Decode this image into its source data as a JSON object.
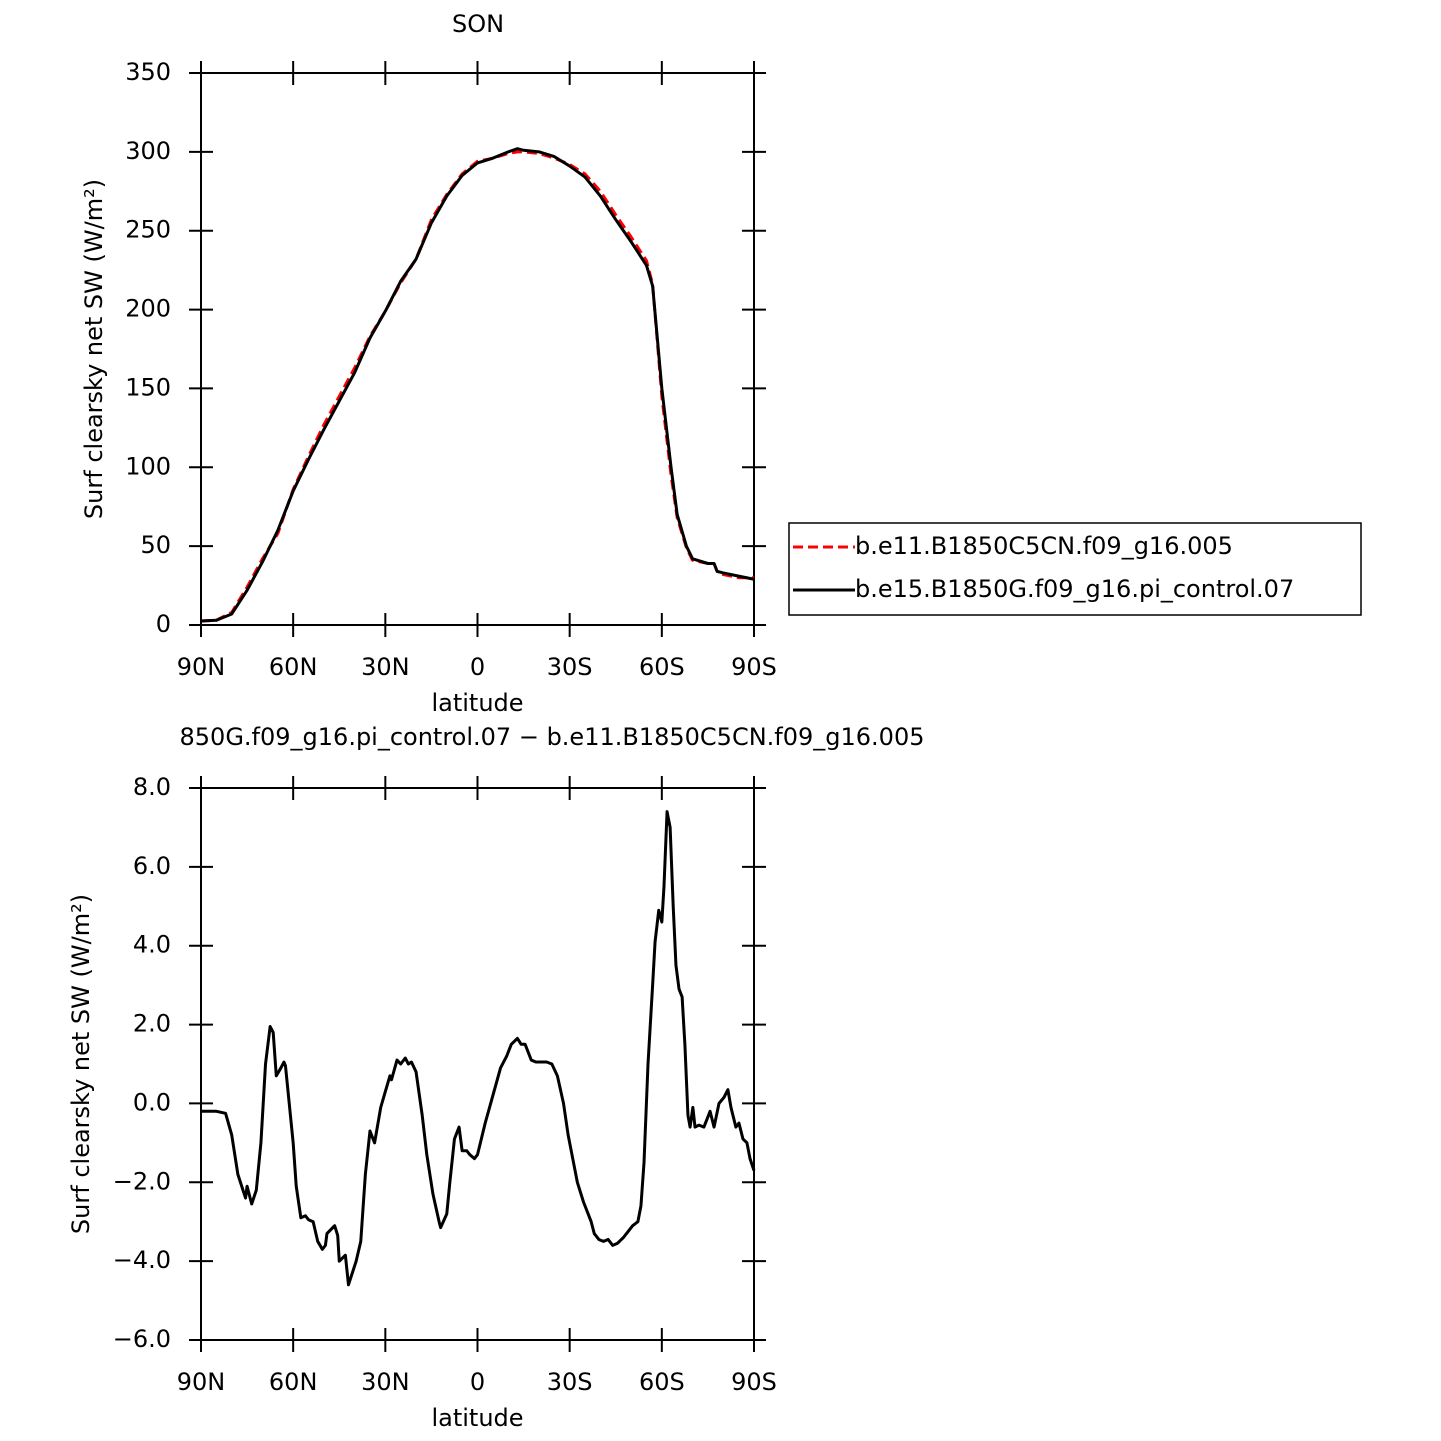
{
  "chart_data": [
    {
      "type": "line",
      "title": "SON",
      "xlabel": "latitude",
      "ylabel": "Surf clearsky net SW (W/m²)",
      "x": [
        90,
        85,
        80,
        75,
        70,
        65,
        60,
        55,
        50,
        45,
        40,
        35,
        30,
        25,
        20,
        15,
        10,
        5,
        0,
        -5,
        -10,
        -13,
        -15,
        -20,
        -25,
        -30,
        -35,
        -40,
        -45,
        -50,
        -55,
        -57,
        -60,
        -63,
        -65,
        -68,
        -70,
        -75,
        -77,
        -78,
        -80,
        -85,
        -90
      ],
      "series": [
        {
          "name": "b.e11.B1850C5CN.f09_g16.005",
          "color": "#ff0000",
          "linestyle": "dashed",
          "values": [
            2.5,
            3,
            8,
            24,
            42,
            58,
            86,
            107,
            127,
            145,
            163,
            183,
            199,
            217,
            232,
            257,
            273,
            286,
            294,
            296,
            299,
            300,
            300,
            299,
            296,
            292,
            286,
            275,
            260,
            246,
            231,
            216,
            145,
            95,
            68,
            49,
            41,
            39,
            39,
            34,
            32,
            30,
            30
          ]
        },
        {
          "name": "b.e15.B1850G.f09_g16.pi_control.07",
          "color": "#000000",
          "linestyle": "solid",
          "values": [
            2.5,
            3,
            7,
            22,
            40,
            60,
            85,
            105,
            124,
            142,
            160,
            182,
            199,
            218,
            232,
            255,
            272,
            285,
            293,
            296,
            300,
            302,
            301,
            300,
            297,
            291,
            284,
            272,
            257,
            243,
            228,
            215,
            150,
            100,
            70,
            50,
            42,
            39,
            39,
            34,
            33,
            31,
            29
          ]
        }
      ],
      "xlim": [
        90,
        -90
      ],
      "xticks": [
        {
          "value": 90,
          "label": "90N"
        },
        {
          "value": 60,
          "label": "60N"
        },
        {
          "value": 30,
          "label": "30N"
        },
        0,
        {
          "value": -30,
          "label": "30S"
        },
        {
          "value": -60,
          "label": "60S"
        },
        {
          "value": -90,
          "label": "90S"
        }
      ],
      "ylim": [
        0,
        350
      ],
      "yticks": [
        0,
        50,
        100,
        150,
        200,
        250,
        300,
        350
      ],
      "legend": "right",
      "grid": false
    },
    {
      "type": "line",
      "title": "850G.f09_g16.pi_control.07 − b.e11.B1850C5CN.f09_g16.005",
      "xlabel": "latitude",
      "ylabel": "Surf clearsky net SW (W/m²)",
      "x": [
        90,
        85,
        82,
        80,
        78,
        75.5,
        75,
        73.5,
        72,
        70.5,
        69,
        67.5,
        66.5,
        65.5,
        64,
        63,
        62.5,
        60,
        59,
        57.5,
        56,
        55,
        53.5,
        52,
        50.5,
        49.5,
        49,
        46.5,
        45.5,
        45,
        43,
        42,
        39.5,
        38,
        36.5,
        35,
        33.5,
        31.5,
        30,
        28.5,
        28,
        26.2,
        25,
        23.5,
        22.5,
        21.5,
        20,
        18,
        16.5,
        14.5,
        12.5,
        12,
        10,
        9,
        7.5,
        6,
        5,
        3.5,
        2.5,
        1,
        0,
        -2.5,
        -5,
        -7.5,
        -9.5,
        -11,
        -13,
        -14.2,
        -15.5,
        -17.5,
        -19,
        -20.5,
        -22.5,
        -24.2,
        -26,
        -28,
        -29.5,
        -31,
        -32.5,
        -34.5,
        -36,
        -37,
        -38,
        -39.5,
        -41,
        -42.5,
        -44,
        -45.5,
        -47.5,
        -48.5,
        -50.5,
        -52.2,
        -53.2,
        -54.2,
        -55.5,
        -57,
        -57.8,
        -59,
        -60,
        -60.7,
        -61.7,
        -62.7,
        -63.7,
        -64.6,
        -65.6,
        -66.6,
        -67.5,
        -68.5,
        -69.2,
        -70.1,
        -70.8,
        -72.1,
        -73.7,
        -75.7,
        -77,
        -78.6,
        -80.2,
        -81.5,
        -82.5,
        -84.1,
        -85.1,
        -86.4,
        -87.7,
        -88.7,
        -90
      ],
      "series": [
        {
          "color": "#000000",
          "linestyle": "solid",
          "values": [
            -0.2,
            -0.2,
            -0.25,
            -0.8,
            -1.8,
            -2.4,
            -2.1,
            -2.55,
            -2.2,
            -1.0,
            1.0,
            1.95,
            1.8,
            0.7,
            0.9,
            1.05,
            0.95,
            -1.0,
            -2.1,
            -2.9,
            -2.85,
            -2.95,
            -3.0,
            -3.5,
            -3.7,
            -3.6,
            -3.3,
            -3.1,
            -3.35,
            -4.0,
            -3.85,
            -4.6,
            -4.0,
            -3.5,
            -1.8,
            -0.7,
            -1.0,
            -0.1,
            0.3,
            0.7,
            0.6,
            1.1,
            1.0,
            1.15,
            1.0,
            1.05,
            0.8,
            -0.3,
            -1.3,
            -2.3,
            -3.0,
            -3.15,
            -2.8,
            -2.0,
            -0.9,
            -0.6,
            -1.2,
            -1.2,
            -1.3,
            -1.4,
            -1.3,
            -0.5,
            0.2,
            0.9,
            1.2,
            1.5,
            1.65,
            1.5,
            1.5,
            1.1,
            1.05,
            1.05,
            1.05,
            1.0,
            0.7,
            0.0,
            -0.8,
            -1.4,
            -2.0,
            -2.5,
            -2.8,
            -3.0,
            -3.3,
            -3.45,
            -3.5,
            -3.45,
            -3.6,
            -3.55,
            -3.4,
            -3.3,
            -3.1,
            -3.0,
            -2.6,
            -1.5,
            1.0,
            3.0,
            4.1,
            4.9,
            4.6,
            5.5,
            7.4,
            7.0,
            5.0,
            3.5,
            2.9,
            2.7,
            1.5,
            -0.3,
            -0.6,
            -0.1,
            -0.6,
            -0.55,
            -0.6,
            -0.2,
            -0.6,
            0.0,
            0.15,
            0.35,
            -0.1,
            -0.6,
            -0.5,
            -0.9,
            -1.0,
            -1.4,
            -1.7
          ]
        }
      ],
      "xlim": [
        90,
        -90
      ],
      "xticks": [
        {
          "value": 90,
          "label": "90N"
        },
        {
          "value": 60,
          "label": "60N"
        },
        {
          "value": 30,
          "label": "30N"
        },
        0,
        {
          "value": -30,
          "label": "30S"
        },
        {
          "value": -60,
          "label": "60S"
        },
        {
          "value": -90,
          "label": "90S"
        }
      ],
      "ylim": [
        -6,
        8
      ],
      "yticks": [
        {
          "value": -6,
          "label": "−6.0"
        },
        {
          "value": -4,
          "label": "−4.0"
        },
        {
          "value": -2,
          "label": "−2.0"
        },
        {
          "value": 0,
          "label": "0.0"
        },
        {
          "value": 2,
          "label": "2.0"
        },
        {
          "value": 4,
          "label": "4.0"
        },
        {
          "value": 6,
          "label": "6.0"
        },
        {
          "value": 8,
          "label": "8.0"
        }
      ],
      "grid": false
    }
  ]
}
